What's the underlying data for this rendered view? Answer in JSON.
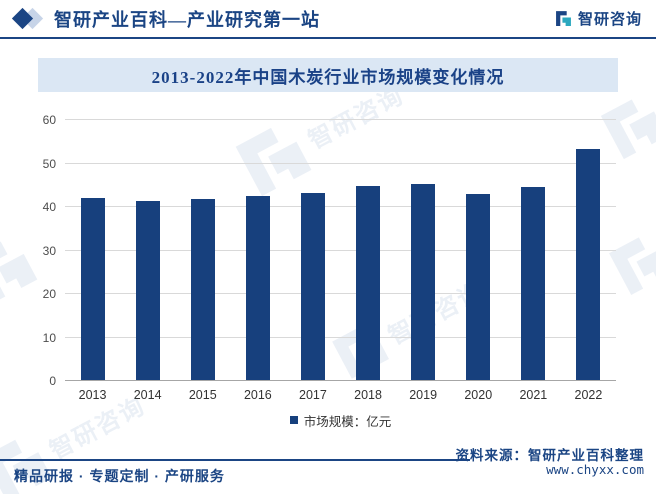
{
  "header": {
    "brand_title": "智研产业百科—产业研究第一站",
    "logo_text": "智研咨询"
  },
  "watermark": {
    "text": "智研咨询"
  },
  "chart_data": {
    "type": "bar",
    "title": "2013-2022年中国木炭行业市场规模变化情况",
    "categories": [
      "2013",
      "2014",
      "2015",
      "2016",
      "2017",
      "2018",
      "2019",
      "2020",
      "2021",
      "2022"
    ],
    "series": [
      {
        "name": "市场规模：亿元",
        "values": [
          41.9,
          41.2,
          41.5,
          42.4,
          43.1,
          44.7,
          45.1,
          42.7,
          44.4,
          53.1
        ]
      }
    ],
    "xlabel": "",
    "ylabel": "",
    "ylim": [
      0,
      60
    ],
    "yticks": [
      0,
      10,
      20,
      30,
      40,
      50,
      60
    ],
    "grid": true,
    "legend_position": "bottom",
    "bar_color": "#17407D"
  },
  "footer": {
    "left_slogan": "精品研报 · 专题定制 · 产研服务",
    "source_line": "资料来源：智研产业百科整理",
    "website": "www.chyxx.com"
  },
  "colors": {
    "brand_navy": "#1B4584",
    "banner_bg": "#DBE7F4",
    "bar": "#17407D",
    "teal": "#2BA8BF",
    "gridline": "#D9D9D9"
  }
}
